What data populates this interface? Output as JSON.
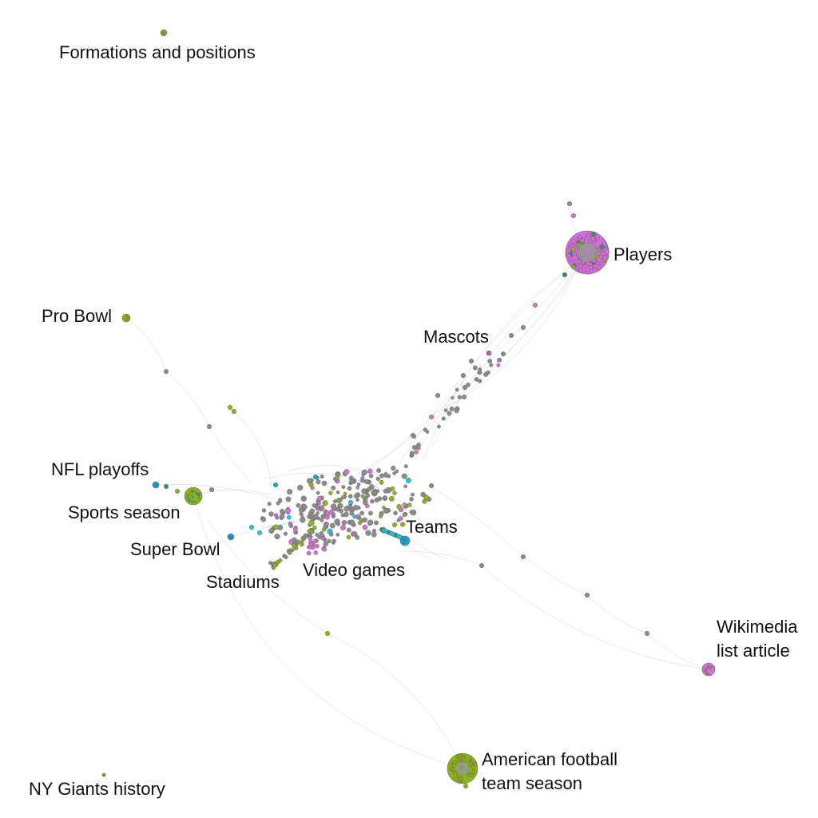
{
  "colors": {
    "background": "#ffffff",
    "gray": "#8c8c8c",
    "green": "#8fb31a",
    "pink": "#d36fd6",
    "blue": "#1fa3d6",
    "teal": "#3a8a7e",
    "cyan": "#1ec6de",
    "edge": "#bdbdbd"
  },
  "clusters": [
    {
      "id": "formations",
      "label_lines": [
        "Formations and positions"
      ],
      "color": "green"
    },
    {
      "id": "players",
      "label_lines": [
        "Players"
      ],
      "color": "pink"
    },
    {
      "id": "pro-bowl",
      "label_lines": [
        "Pro Bowl"
      ],
      "color": "green"
    },
    {
      "id": "mascots",
      "label_lines": [
        "Mascots"
      ],
      "color": "pink"
    },
    {
      "id": "nfl-playoffs",
      "label_lines": [
        "NFL playoffs"
      ],
      "color": "blue"
    },
    {
      "id": "sports-season",
      "label_lines": [
        "Sports season"
      ],
      "color": "green"
    },
    {
      "id": "teams",
      "label_lines": [
        "Teams"
      ],
      "color": "blue"
    },
    {
      "id": "super-bowl",
      "label_lines": [
        "Super Bowl"
      ],
      "color": "blue"
    },
    {
      "id": "video-games",
      "label_lines": [
        "Video games"
      ],
      "color": "pink"
    },
    {
      "id": "stadiums",
      "label_lines": [
        "Stadiums"
      ],
      "color": "green"
    },
    {
      "id": "wikimedia",
      "label_lines": [
        "Wikimedia",
        "list article"
      ],
      "color": "pink"
    },
    {
      "id": "team-season",
      "label_lines": [
        "American football",
        "team season"
      ],
      "color": "green"
    },
    {
      "id": "ny-giants",
      "label_lines": [
        "NY Giants history"
      ],
      "color": "green"
    }
  ]
}
